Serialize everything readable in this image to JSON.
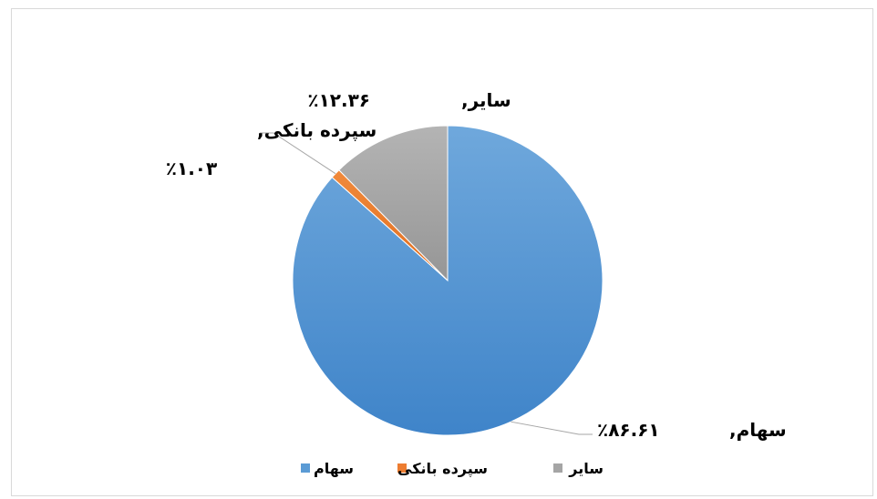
{
  "chart_data": {
    "type": "pie",
    "title": "",
    "series": [
      {
        "name": "سهام",
        "value": 86.61,
        "label_name": "سهام,",
        "label_value": "٪۸۶.۶۱",
        "color": "#5b9bd5"
      },
      {
        "name": "سپرده بانکی",
        "value": 1.03,
        "label_name": "سپرده بانکی,",
        "label_value": "٪۱.۰۳",
        "color": "#ed7d31"
      },
      {
        "name": "سایر",
        "value": 12.36,
        "label_name": "سایر,",
        "label_value": "٪۱۲.۳۶",
        "color": "#a5a5a5"
      }
    ],
    "legend": {
      "position": "bottom",
      "items": [
        "سهام",
        "سپرده بانکی",
        "سایر"
      ]
    },
    "data_labels": "outside-with-leader-lines",
    "start_angle": "12 o'clock, clockwise"
  }
}
